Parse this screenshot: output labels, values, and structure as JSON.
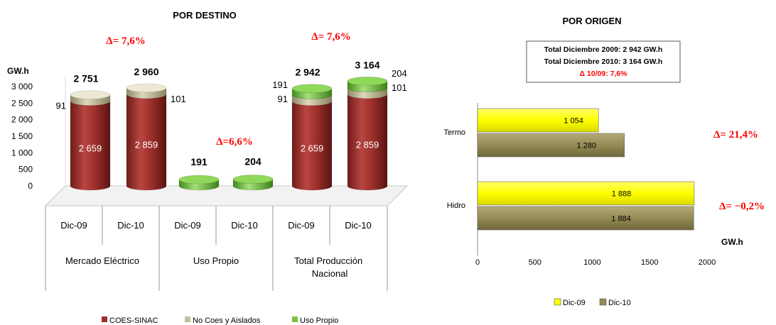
{
  "chart_data": [
    {
      "type": "bar",
      "variant": "stacked-3d-cylinder",
      "title": "POR DESTINO",
      "ylabel": "GW.h",
      "ylim": [
        0,
        3000
      ],
      "yticks": [
        "0",
        "500",
        "1 000",
        "1 500",
        "2 000",
        "2 500",
        "3 000"
      ],
      "groups": [
        {
          "label": "Mercado Eléctrico",
          "delta": "Δ= 7,6%",
          "bars": [
            {
              "category": "Dic-09",
              "total": 2751,
              "total_label": "2 751",
              "segments": [
                {
                  "series": "COES-SINAC",
                  "value": 2659,
                  "label": "2 659"
                },
                {
                  "series": "No Coes y Aislados",
                  "value": 91,
                  "label": "91"
                }
              ]
            },
            {
              "category": "Dic-10",
              "total": 2960,
              "total_label": "2 960",
              "segments": [
                {
                  "series": "COES-SINAC",
                  "value": 2859,
                  "label": "2 859"
                },
                {
                  "series": "No Coes y Aislados",
                  "value": 101,
                  "label": "101"
                }
              ]
            }
          ]
        },
        {
          "label": "Uso Propio",
          "delta": "Δ=6,6%",
          "bars": [
            {
              "category": "Dic-09",
              "total": 191,
              "total_label": "191",
              "segments": [
                {
                  "series": "Uso Propio",
                  "value": 191,
                  "label": ""
                }
              ]
            },
            {
              "category": "Dic-10",
              "total": 204,
              "total_label": "204",
              "segments": [
                {
                  "series": "Uso Propio",
                  "value": 204,
                  "label": ""
                }
              ]
            }
          ]
        },
        {
          "label": "Total Producción Nacional",
          "delta": "Δ= 7,6%",
          "bars": [
            {
              "category": "Dic-09",
              "total": 2942,
              "total_label": "2 942",
              "segments": [
                {
                  "series": "COES-SINAC",
                  "value": 2659,
                  "label": "2 659"
                },
                {
                  "series": "No Coes y Aislados",
                  "value": 91,
                  "label": "91"
                },
                {
                  "series": "Uso Propio",
                  "value": 191,
                  "label": "191"
                }
              ]
            },
            {
              "category": "Dic-10",
              "total": 3164,
              "total_label": "3 164",
              "segments": [
                {
                  "series": "COES-SINAC",
                  "value": 2859,
                  "label": "2 859"
                },
                {
                  "series": "No Coes y Aislados",
                  "value": 101,
                  "label": "101"
                },
                {
                  "series": "Uso Propio",
                  "value": 204,
                  "label": "204"
                }
              ]
            }
          ]
        }
      ],
      "legend": {
        "placement": "bottom",
        "items": [
          {
            "name": "COES-SINAC",
            "color": "#9b2f2b"
          },
          {
            "name": "No Coes y Aislados",
            "color": "#c4bd97"
          },
          {
            "name": "Uso Propio",
            "color": "#7cc142"
          }
        ]
      }
    },
    {
      "type": "bar",
      "orientation": "horizontal",
      "title": "POR ORIGEN",
      "xlabel": "GW.h",
      "xlim": [
        0,
        2000
      ],
      "xticks": [
        "0",
        "500",
        "1000",
        "1500",
        "2000"
      ],
      "categories": [
        "Termo",
        "Hidro"
      ],
      "series": [
        {
          "name": "Dic-09",
          "color": "#ffff00",
          "values": [
            1054,
            1888
          ],
          "labels": [
            "1 054",
            "1 888"
          ]
        },
        {
          "name": "Dic-10",
          "color": "#948a54",
          "values": [
            1280,
            1884
          ],
          "labels": [
            "1 280",
            "1 884"
          ]
        }
      ],
      "deltas": [
        "Δ= 21,4%",
        "Δ= −0,2%"
      ],
      "summary": [
        "Total  Diciembre 2009: 2 942  GW.h",
        "Total  Diciembre 2010: 3 164  GW.h",
        "Δ 10/09: 7,6%"
      ],
      "legend": {
        "placement": "bottom",
        "items": [
          "Dic-09",
          "Dic-10"
        ]
      }
    }
  ]
}
